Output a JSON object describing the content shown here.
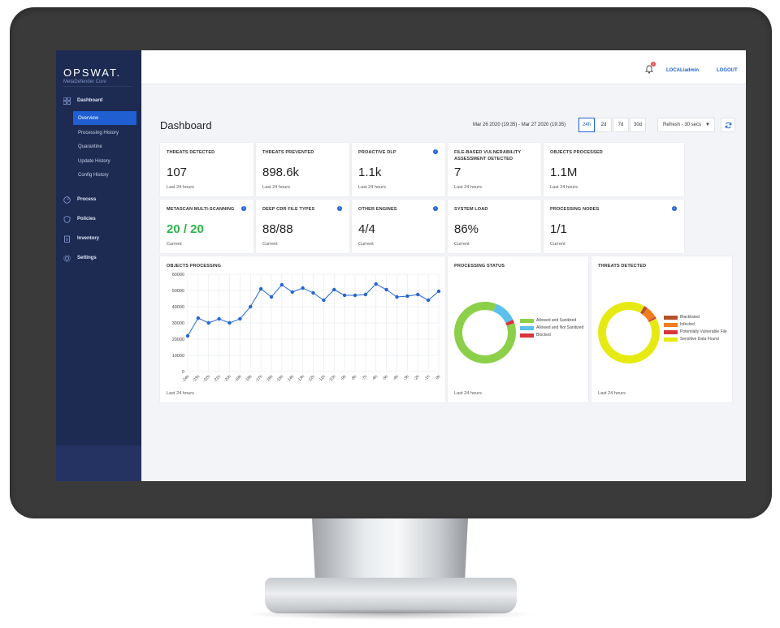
{
  "brand": {
    "logo": "OPSWAT.",
    "product": "MetaDefender Core"
  },
  "sidebar": {
    "items": [
      {
        "label": "Dashboard",
        "icon": "grid-icon"
      },
      {
        "label": "Process",
        "icon": "gauge-icon"
      },
      {
        "label": "Policies",
        "icon": "shield-icon"
      },
      {
        "label": "Inventory",
        "icon": "clipboard-icon"
      },
      {
        "label": "Settings",
        "icon": "gear-icon"
      }
    ],
    "subitems": [
      "Overview",
      "Processing History",
      "Quarantine",
      "Update History",
      "Config History"
    ],
    "active_subitem": "Overview"
  },
  "topbar": {
    "notification_count": "1",
    "user": "LOCAL/admin",
    "logout": "LOGOUT"
  },
  "header": {
    "title": "Dashboard",
    "date_range": "Mar 26 2020 (19:35) - Mar 27 2020 (19:35)",
    "ranges": [
      "24h",
      "2d",
      "7d",
      "30d"
    ],
    "active_range": "24h",
    "refresh": "Refresh - 30 secs"
  },
  "cards": {
    "row1": [
      {
        "title": "THREATS DETECTED",
        "value": "107",
        "sub": "Last 24 hours",
        "info": false
      },
      {
        "title": "THREATS PREVENTED",
        "value": "898.6k",
        "sub": "Last 24 hours",
        "info": false
      },
      {
        "title": "PROACTIVE DLP",
        "value": "1.1k",
        "sub": "Last 24 hours",
        "info": true
      },
      {
        "title": "FILE-BASED VULNERABILITY ASSESSMENT DETECTED",
        "value": "7",
        "sub": "Last 24 hours",
        "info": false
      },
      {
        "title": "OBJECTS PROCESSED",
        "value": "1.1M",
        "sub": "Last 24 hours",
        "info": false
      }
    ],
    "row2": [
      {
        "title": "METASCAN MULTI-SCANNING",
        "value": "20 / 20",
        "sub": "Current",
        "info": true
      },
      {
        "title": "DEEP CDR FILE TYPES",
        "value": "88/88",
        "sub": "Current",
        "info": true
      },
      {
        "title": "OTHER ENGINES",
        "value": "4/4",
        "sub": "Current",
        "info": true
      },
      {
        "title": "SYSTEM LOAD",
        "value": "86%",
        "sub": "Current",
        "info": false
      },
      {
        "title": "PROCESSING NODES",
        "value": "1/1",
        "sub": "Current",
        "info": true
      }
    ],
    "objects_processing": {
      "title": "OBJECTS PROCESSING",
      "sub": "Last 24 hours"
    },
    "processing_status": {
      "title": "PROCESSING STATUS",
      "sub": "Last 24 hours"
    },
    "threats_detected_chart": {
      "title": "THREATS DETECTED",
      "sub": "Last 24 hours"
    }
  },
  "chart_data": [
    {
      "type": "line",
      "title": "OBJECTS PROCESSING",
      "x": [
        "-24h",
        "-23h",
        "-22h",
        "-21h",
        "-20h",
        "-19h",
        "-18h",
        "-17h",
        "-16h",
        "-15h",
        "-14h",
        "-13h",
        "-12h",
        "-11h",
        "-10h",
        "-9h",
        "-8h",
        "-7h",
        "-6h",
        "-5h",
        "-4h",
        "-3h",
        "-2h",
        "-1h",
        "0h"
      ],
      "values": [
        22000,
        33000,
        30000,
        32500,
        30000,
        32500,
        40000,
        51000,
        46000,
        53500,
        49000,
        51500,
        48500,
        44000,
        50500,
        47000,
        47000,
        47500,
        54000,
        50500,
        46000,
        46500,
        47500,
        44000,
        49500
      ],
      "ylim": [
        0,
        60000
      ],
      "yticks": [
        "0",
        "10000",
        "20000",
        "30000",
        "40000",
        "50000",
        "60000"
      ],
      "grid": true,
      "color": "#2566d1"
    },
    {
      "type": "pie",
      "title": "PROCESSING STATUS",
      "donut": true,
      "slices": [
        {
          "name": "Allowed and Sanitized",
          "value": 86,
          "color": "#8cd04a"
        },
        {
          "name": "Allowed and Not Sanitized",
          "value": 12,
          "color": "#5bc0eb"
        },
        {
          "name": "Blocked",
          "value": 2,
          "color": "#d9343a"
        }
      ],
      "legend": "right"
    },
    {
      "type": "pie",
      "title": "THREATS DETECTED",
      "donut": true,
      "slices": [
        {
          "name": "Blacklisted",
          "value": 2,
          "color": "#b5512a"
        },
        {
          "name": "Infected",
          "value": 6,
          "color": "#f07c1b"
        },
        {
          "name": "Potentially Vulnerable File",
          "value": 1,
          "color": "#d9343a"
        },
        {
          "name": "Sensitive Data Found",
          "value": 91,
          "color": "#e6ea12"
        }
      ],
      "legend": "right"
    }
  ]
}
